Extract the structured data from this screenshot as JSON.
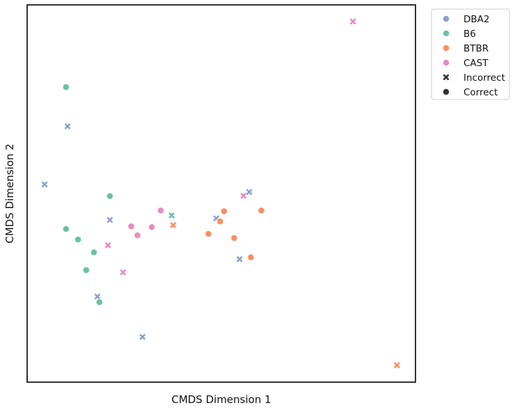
{
  "chart_data": {
    "type": "scatter",
    "xlabel": "CMDS Dimension 1",
    "ylabel": "CMDS Dimension 2",
    "xlim": [
      0,
      100
    ],
    "ylim": [
      0,
      100
    ],
    "ticks_shown": false,
    "grid": false,
    "legend_position": "outside-top-right",
    "legend": [
      {
        "label": "DBA2",
        "kind": "hue",
        "color": "#8da0cb"
      },
      {
        "label": "B6",
        "kind": "hue",
        "color": "#66c2a5"
      },
      {
        "label": "BTBR",
        "kind": "hue",
        "color": "#fc8d62"
      },
      {
        "label": "CAST",
        "kind": "hue",
        "color": "#e78ac3"
      },
      {
        "label": "Incorrect",
        "kind": "style",
        "marker": "x",
        "color": "#333333"
      },
      {
        "label": "Correct",
        "kind": "style",
        "marker": "circle",
        "color": "#333333"
      }
    ],
    "series": [
      {
        "name": "DBA2",
        "color": "#8da0cb",
        "points": [
          {
            "x": 10.4,
            "y": 67.8,
            "marker": "x"
          },
          {
            "x": 4.5,
            "y": 52.4,
            "marker": "x"
          },
          {
            "x": 21.3,
            "y": 43.0,
            "marker": "x"
          },
          {
            "x": 18.1,
            "y": 22.7,
            "marker": "x"
          },
          {
            "x": 29.7,
            "y": 12.0,
            "marker": "x"
          },
          {
            "x": 48.7,
            "y": 43.4,
            "marker": "x"
          },
          {
            "x": 57.2,
            "y": 50.4,
            "marker": "x"
          },
          {
            "x": 54.7,
            "y": 32.6,
            "marker": "x"
          }
        ]
      },
      {
        "name": "B6",
        "color": "#66c2a5",
        "points": [
          {
            "x": 10.0,
            "y": 78.2,
            "marker": "circle"
          },
          {
            "x": 21.3,
            "y": 49.3,
            "marker": "circle"
          },
          {
            "x": 10.0,
            "y": 40.6,
            "marker": "circle"
          },
          {
            "x": 13.1,
            "y": 37.8,
            "marker": "circle"
          },
          {
            "x": 17.2,
            "y": 34.4,
            "marker": "circle"
          },
          {
            "x": 15.2,
            "y": 29.7,
            "marker": "circle"
          },
          {
            "x": 18.6,
            "y": 21.2,
            "marker": "circle"
          },
          {
            "x": 37.2,
            "y": 44.2,
            "marker": "x"
          }
        ]
      },
      {
        "name": "BTBR",
        "color": "#fc8d62",
        "points": [
          {
            "x": 37.6,
            "y": 41.6,
            "marker": "x"
          },
          {
            "x": 50.7,
            "y": 45.3,
            "marker": "circle"
          },
          {
            "x": 49.7,
            "y": 42.6,
            "marker": "circle"
          },
          {
            "x": 60.3,
            "y": 45.5,
            "marker": "circle"
          },
          {
            "x": 46.7,
            "y": 39.3,
            "marker": "circle"
          },
          {
            "x": 53.3,
            "y": 38.2,
            "marker": "circle"
          },
          {
            "x": 57.6,
            "y": 33.1,
            "marker": "circle"
          },
          {
            "x": 95.2,
            "y": 4.5,
            "marker": "x"
          }
        ]
      },
      {
        "name": "CAST",
        "color": "#e78ac3",
        "points": [
          {
            "x": 83.9,
            "y": 95.6,
            "marker": "x"
          },
          {
            "x": 55.7,
            "y": 49.4,
            "marker": "x"
          },
          {
            "x": 34.4,
            "y": 45.5,
            "marker": "circle"
          },
          {
            "x": 26.8,
            "y": 41.3,
            "marker": "circle"
          },
          {
            "x": 28.4,
            "y": 38.9,
            "marker": "circle"
          },
          {
            "x": 32.1,
            "y": 41.1,
            "marker": "circle"
          },
          {
            "x": 20.8,
            "y": 36.3,
            "marker": "x"
          },
          {
            "x": 24.7,
            "y": 29.1,
            "marker": "x"
          }
        ]
      }
    ]
  }
}
